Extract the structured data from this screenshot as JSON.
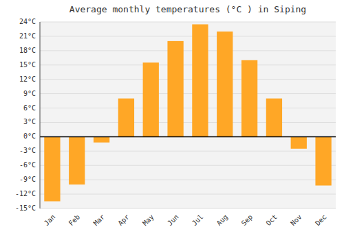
{
  "chart_data": {
    "type": "bar",
    "title": "Average monthly temperatures (°C ) in Siping",
    "categories": [
      "Jan",
      "Feb",
      "Mar",
      "Apr",
      "May",
      "Jun",
      "Jul",
      "Aug",
      "Sep",
      "Oct",
      "Nov",
      "Dec"
    ],
    "values": [
      -13.5,
      -10.0,
      -1.2,
      8.0,
      15.5,
      20.0,
      23.5,
      22.0,
      16.0,
      8.0,
      -2.5,
      -10.2
    ],
    "color": "#FFA726",
    "ylim": [
      -15,
      24
    ],
    "yticks": [
      {
        "value": -15,
        "label": "-15°C"
      },
      {
        "value": -12,
        "label": "-12°C"
      },
      {
        "value": -9,
        "label": "-9°C"
      },
      {
        "value": -6,
        "label": "-6°C"
      },
      {
        "value": -3,
        "label": "-3°C"
      },
      {
        "value": 0,
        "label": "0°C"
      },
      {
        "value": 3,
        "label": "3°C"
      },
      {
        "value": 6,
        "label": "6°C"
      },
      {
        "value": 9,
        "label": "9°C"
      },
      {
        "value": 12,
        "label": "12°C"
      },
      {
        "value": 15,
        "label": "15°C"
      },
      {
        "value": 18,
        "label": "18°C"
      },
      {
        "value": 21,
        "label": "21°C"
      },
      {
        "value": 24,
        "label": "24°C"
      }
    ],
    "grid": true
  }
}
